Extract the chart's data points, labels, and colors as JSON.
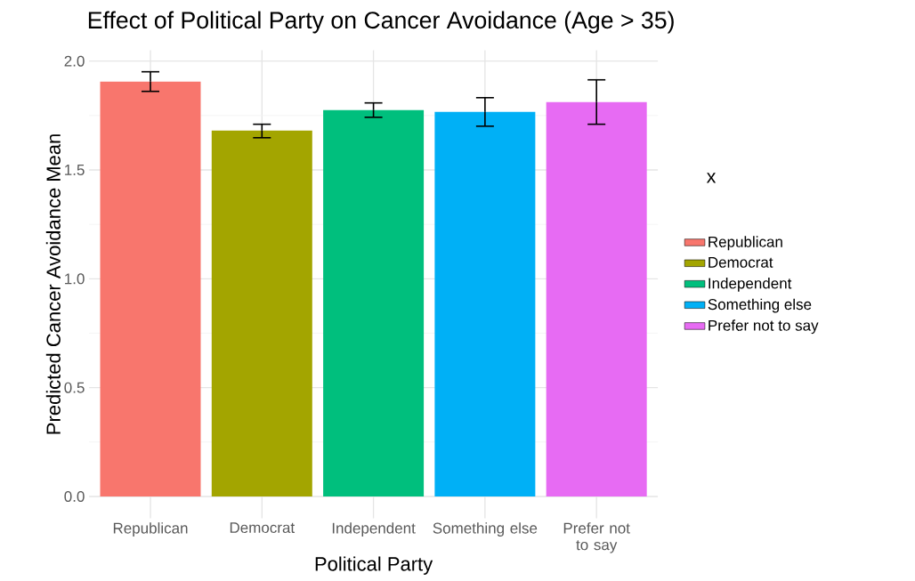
{
  "chart_data": {
    "type": "bar",
    "title": "Effect of Political Party on Cancer Avoidance (Age > 35)",
    "xlabel": "Political Party",
    "ylabel": "Predicted Cancer Avoidance Mean",
    "legend_title": "x",
    "categories": [
      "Republican",
      "Democrat",
      "Independent",
      "Something else",
      "Prefer not to say"
    ],
    "series": [
      {
        "name": "Republican",
        "color": "#f8766d",
        "values": [
          1.906,
          null,
          null,
          null,
          null
        ],
        "errors": [
          [
            1.861,
            1.951
          ],
          null,
          null,
          null,
          null
        ]
      },
      {
        "name": "Democrat",
        "color": "#a3a500",
        "values": [
          null,
          1.681,
          null,
          null,
          null
        ],
        "errors": [
          null,
          [
            1.648,
            1.71
          ],
          null,
          null,
          null
        ]
      },
      {
        "name": "Independent",
        "color": "#00bf7d",
        "values": [
          null,
          null,
          1.775,
          null,
          null
        ],
        "errors": [
          null,
          null,
          [
            1.742,
            1.808
          ],
          null,
          null
        ]
      },
      {
        "name": "Something else",
        "color": "#00b0f6",
        "values": [
          null,
          null,
          null,
          1.767,
          null
        ],
        "errors": [
          null,
          null,
          null,
          [
            1.701,
            1.832
          ],
          null
        ]
      },
      {
        "name": "Prefer not to say",
        "color": "#e76bf3",
        "values": [
          null,
          null,
          null,
          null,
          1.812
        ],
        "errors": [
          null,
          null,
          null,
          null,
          [
            1.71,
            1.914
          ]
        ]
      }
    ],
    "ylim": [
      -0.1,
      2.05
    ],
    "yticks": [
      {
        "value": 0,
        "label": "0.0"
      },
      {
        "value": 0.5,
        "label": "0.5"
      },
      {
        "value": 1,
        "label": "1.0"
      },
      {
        "value": 1.5,
        "label": "1.5"
      },
      {
        "value": 2,
        "label": "2.0"
      }
    ],
    "grid": true,
    "legend": "right"
  }
}
